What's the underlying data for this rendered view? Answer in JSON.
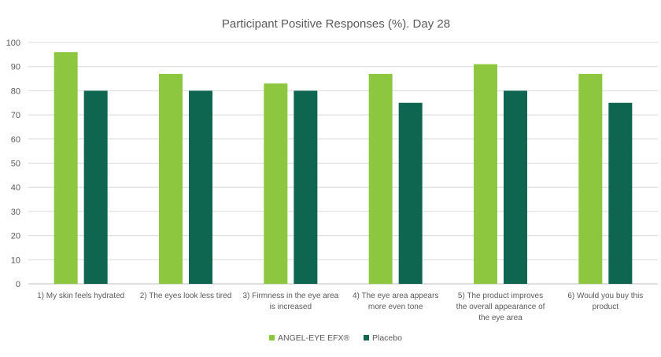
{
  "chart_data": {
    "type": "bar",
    "title": "Participant Positive Responses (%). Day 28",
    "xlabel": "",
    "ylabel": "",
    "ylim": [
      0,
      100
    ],
    "yticks": [
      0,
      10,
      20,
      30,
      40,
      50,
      60,
      70,
      80,
      90,
      100
    ],
    "categories": [
      [
        "1) My skin feels hydrated"
      ],
      [
        "2) The eyes look less tired"
      ],
      [
        "3) Firmness in the eye area",
        "is increased"
      ],
      [
        "4) The eye area appears",
        "more even tone"
      ],
      [
        "5) The product improves",
        "the overall appearance of",
        "the eye area"
      ],
      [
        "6) Would you buy this",
        "product"
      ]
    ],
    "series": [
      {
        "name": "ANGEL-EYE EFX®",
        "color": "#8dc63f",
        "values": [
          96,
          87,
          83,
          87,
          91,
          87
        ]
      },
      {
        "name": "Placebo",
        "color": "#0e6650",
        "values": [
          80,
          80,
          80,
          75,
          80,
          75
        ]
      }
    ],
    "grid": true,
    "legend_position": "bottom"
  }
}
